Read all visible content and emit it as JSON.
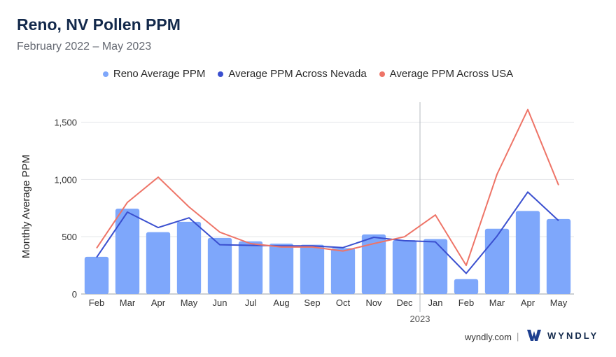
{
  "header": {
    "title": "Reno, NV Pollen PPM",
    "subtitle": "February 2022 – May 2023"
  },
  "legend": [
    {
      "label": "Reno Average PPM",
      "color": "#7ea7fb"
    },
    {
      "label": "Average PPM Across Nevada",
      "color": "#3a4fcf"
    },
    {
      "label": "Average PPM Across USA",
      "color": "#ee7467"
    }
  ],
  "footer": {
    "url": "wyndly.com",
    "separator": "|",
    "brand": "WYNDLY",
    "logo_icon": "wyndly-w-logo-icon"
  },
  "chart_data": {
    "type": "bar",
    "ylabel": "Monthly Average PPM",
    "ylim": [
      0,
      1650
    ],
    "yticks": [
      0,
      500,
      1000,
      1500
    ],
    "ytick_labels": [
      "0",
      "500",
      "1,000",
      "1,500"
    ],
    "grid": true,
    "legend_position": "top-center",
    "categories": [
      "Feb",
      "Mar",
      "Apr",
      "May",
      "Jun",
      "Jul",
      "Aug",
      "Sep",
      "Oct",
      "Nov",
      "Dec",
      "Jan",
      "Feb",
      "Mar",
      "Apr",
      "May"
    ],
    "year_marker": {
      "label": "2023",
      "before_category_index": 11
    },
    "series": [
      {
        "name": "Reno Average PPM",
        "type": "bar",
        "color": "#7ea7fb",
        "values": [
          325,
          745,
          540,
          630,
          490,
          460,
          440,
          430,
          400,
          520,
          470,
          480,
          130,
          570,
          725,
          655
        ]
      },
      {
        "name": "Average PPM Across Nevada",
        "type": "line",
        "color": "#3a4fcf",
        "values": [
          320,
          715,
          580,
          665,
          430,
          425,
          420,
          420,
          405,
          495,
          465,
          455,
          180,
          505,
          890,
          640
        ]
      },
      {
        "name": "Average PPM Across USA",
        "type": "line",
        "color": "#ee7467",
        "values": [
          400,
          800,
          1020,
          760,
          540,
          440,
          410,
          410,
          375,
          440,
          500,
          690,
          250,
          1045,
          1610,
          950
        ]
      }
    ]
  }
}
